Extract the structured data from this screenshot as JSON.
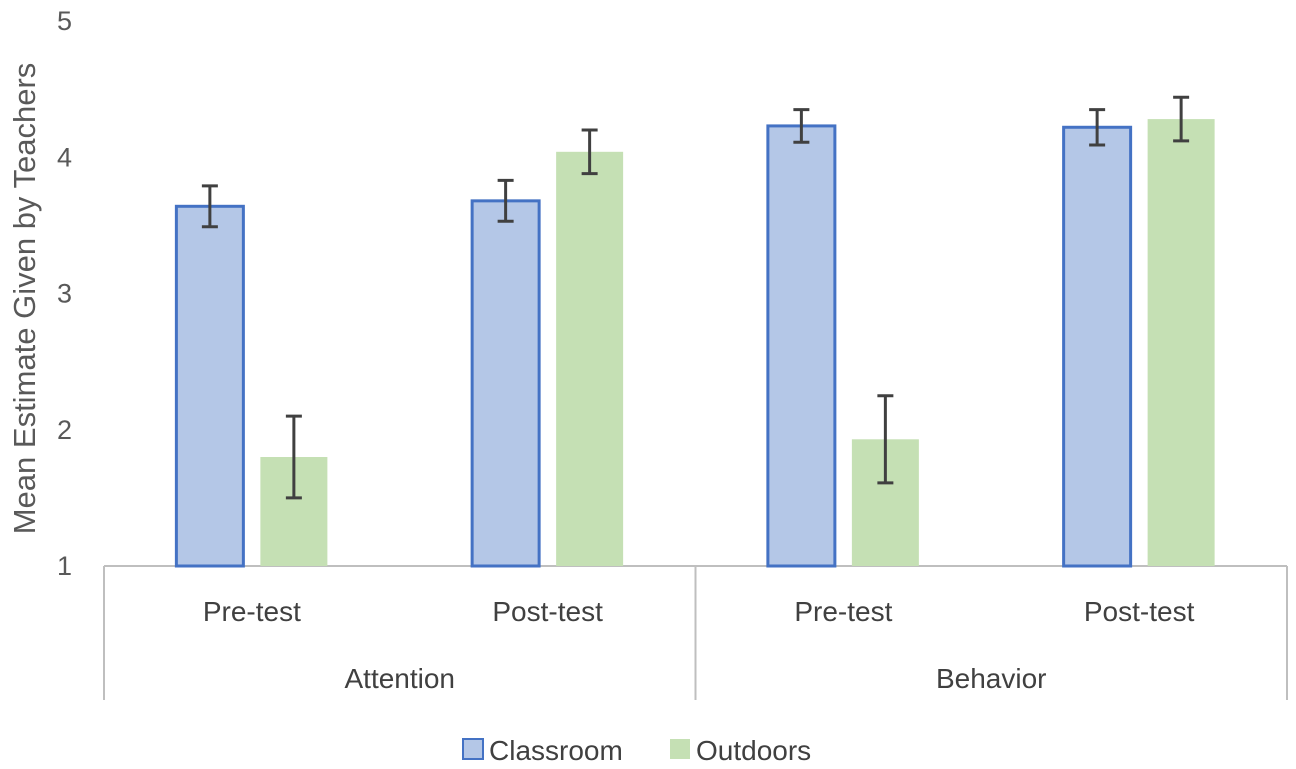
{
  "chart_data": {
    "type": "bar",
    "title": "",
    "xlabel": "",
    "ylabel": "Mean Estimate Given by Teachers",
    "ylim": [
      1,
      5
    ],
    "yticks": [
      "1",
      "2",
      "3",
      "4",
      "5"
    ],
    "groups": [
      {
        "label": "Attention",
        "categories": [
          "Pre-test",
          "Post-test"
        ]
      },
      {
        "label": "Behavior",
        "categories": [
          "Pre-test",
          "Post-test"
        ]
      }
    ],
    "categories": [
      "Pre-test",
      "Post-test",
      "Pre-test",
      "Post-test"
    ],
    "series": [
      {
        "name": "Classroom",
        "values": [
          3.64,
          3.68,
          4.23,
          4.22
        ],
        "errors": [
          0.15,
          0.15,
          0.12,
          0.13
        ],
        "color": "#b4c7e7",
        "border": "#4472c4"
      },
      {
        "name": "Outdoors",
        "values": [
          1.8,
          4.04,
          1.93,
          4.28
        ],
        "errors": [
          0.3,
          0.16,
          0.32,
          0.16
        ],
        "color": "#c5e0b4",
        "border": ""
      }
    ],
    "legend_position": "bottom",
    "grid": false
  }
}
